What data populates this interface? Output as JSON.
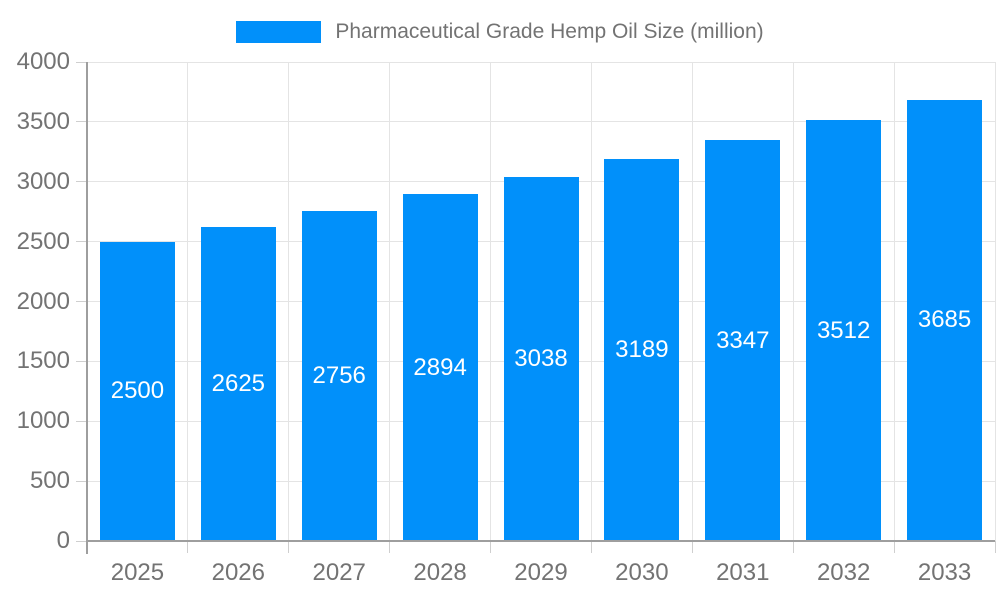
{
  "chart_data": {
    "type": "bar",
    "title": "Pharmaceutical Grade Hemp Oil Size (million)",
    "xlabel": "",
    "ylabel": "",
    "categories": [
      "2025",
      "2026",
      "2027",
      "2028",
      "2029",
      "2030",
      "2031",
      "2032",
      "2033"
    ],
    "series": [
      {
        "name": "Pharmaceutical Grade Hemp Oil Size (million)",
        "values": [
          2500,
          2625,
          2756,
          2894,
          3038,
          3189,
          3347,
          3512,
          3685
        ]
      }
    ],
    "ylim": [
      0,
      4000
    ],
    "ytick_step": 500,
    "ytick_labels": [
      "0",
      "500",
      "1000",
      "1500",
      "2000",
      "2500",
      "3000",
      "3500",
      "4000"
    ],
    "grid": "on",
    "legend_position": "top-center",
    "bar_value_labels_visible": true,
    "colors": {
      "bar": "#0190fa",
      "grid": "#e4e4e4",
      "axis": "#9e9e9e",
      "tick": "#cfcfcf",
      "text": "#737373",
      "bar_label": "#ffffff",
      "background": "#ffffff"
    }
  }
}
